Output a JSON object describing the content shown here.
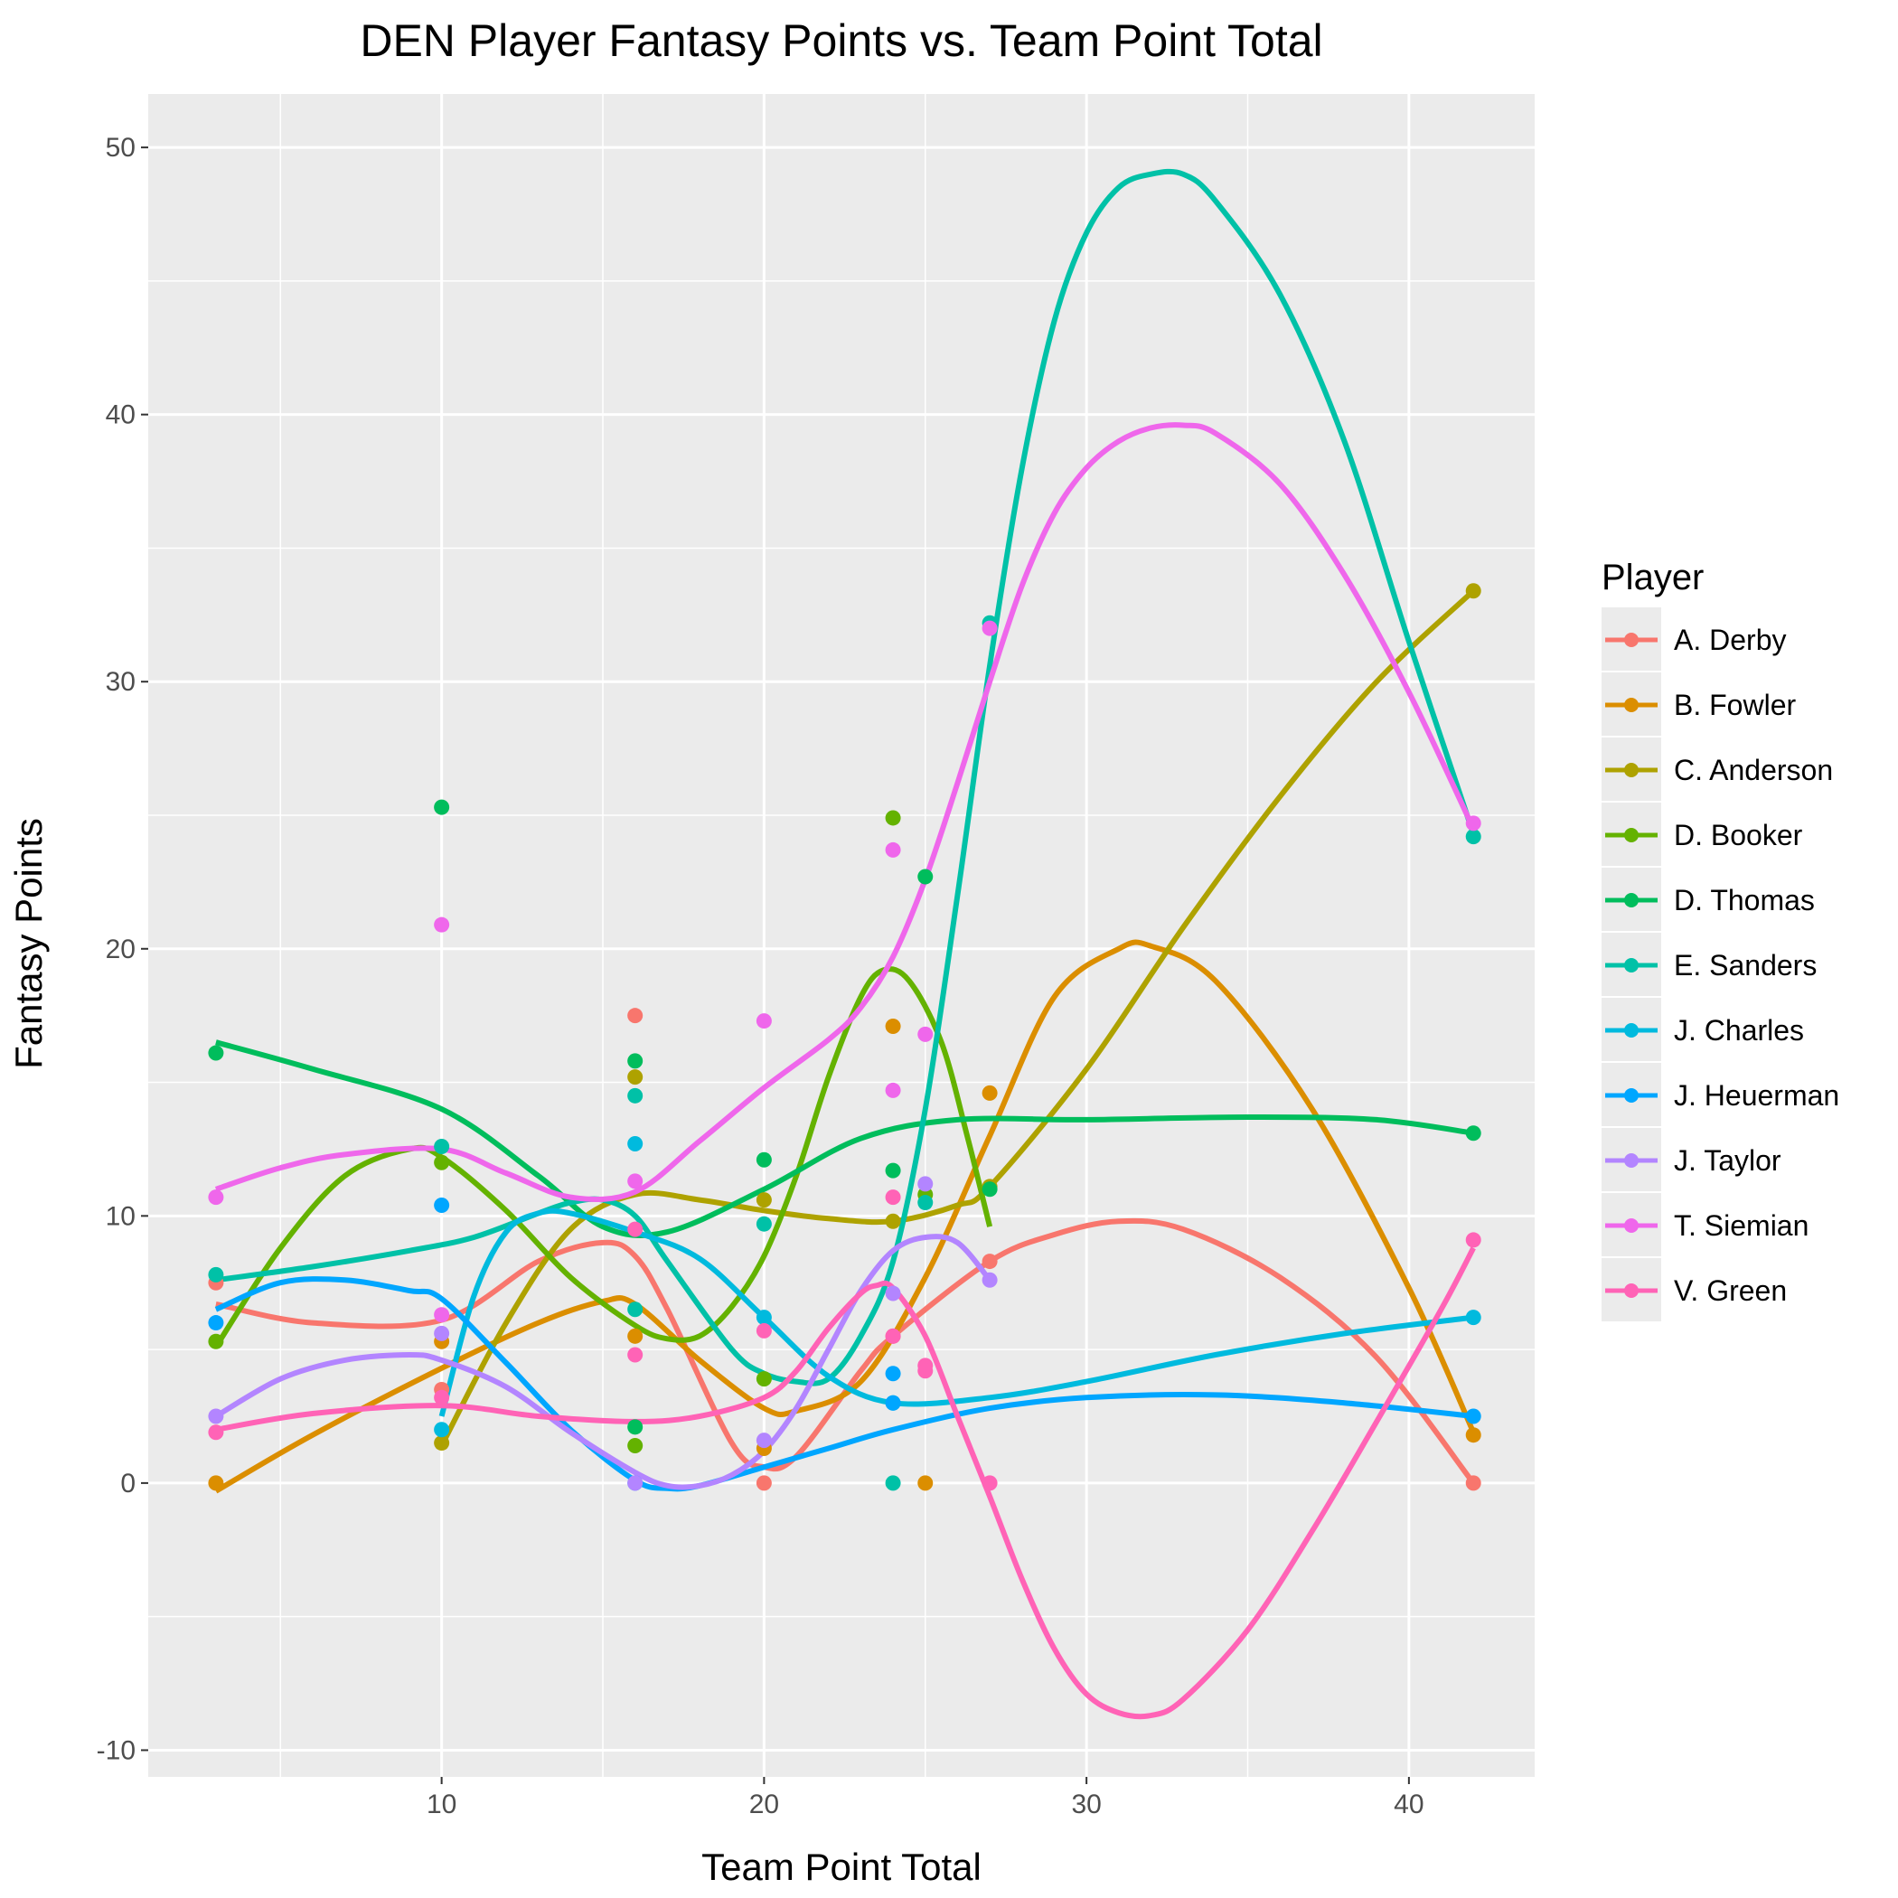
{
  "chart_data": {
    "type": "scatter",
    "title": "DEN Player Fantasy Points vs. Team Point Total",
    "xlabel": "Team Point Total",
    "ylabel": "Fantasy Points",
    "xlim": [
      0.9,
      43.9
    ],
    "ylim": [
      -11.0,
      52.0
    ],
    "x_ticks": [
      10,
      20,
      30,
      40
    ],
    "y_ticks": [
      -10,
      0,
      10,
      20,
      30,
      40,
      50
    ],
    "x_tick_labels": [
      "10",
      "20",
      "30",
      "40"
    ],
    "y_tick_labels": [
      "-10",
      "0",
      "10",
      "20",
      "30",
      "40",
      "50"
    ],
    "grid": true,
    "legend_title": "Player",
    "legend_position": "right",
    "series": [
      {
        "name": "A. Derby",
        "color": "#F8766D",
        "points": [
          [
            3,
            7.5
          ],
          [
            10,
            3.5
          ],
          [
            16,
            17.5
          ],
          [
            20,
            0
          ],
          [
            24,
            5.5
          ],
          [
            27,
            8.3
          ],
          [
            42,
            0
          ]
        ],
        "smooth": [
          [
            3,
            6.7
          ],
          [
            6,
            6.0
          ],
          [
            10,
            6.1
          ],
          [
            13,
            8.3
          ],
          [
            15,
            9.0
          ],
          [
            16,
            8.5
          ],
          [
            17,
            6.5
          ],
          [
            19,
            1.5
          ],
          [
            20,
            0.6
          ],
          [
            21,
            1.0
          ],
          [
            23,
            4.2
          ],
          [
            24,
            5.5
          ],
          [
            27,
            8.3
          ],
          [
            29,
            9.3
          ],
          [
            31,
            9.8
          ],
          [
            33,
            9.5
          ],
          [
            36,
            7.7
          ],
          [
            39,
            4.7
          ],
          [
            42,
            0
          ]
        ]
      },
      {
        "name": "B. Fowler",
        "color": "#DB8E00",
        "points": [
          [
            3,
            0
          ],
          [
            10,
            5.3
          ],
          [
            16,
            5.5
          ],
          [
            20,
            1.3
          ],
          [
            24,
            17.1
          ],
          [
            25,
            0
          ],
          [
            27,
            14.6
          ],
          [
            42,
            1.8
          ]
        ],
        "smooth": [
          [
            3,
            -0.3
          ],
          [
            6,
            1.8
          ],
          [
            10,
            4.3
          ],
          [
            13,
            6.0
          ],
          [
            15,
            6.8
          ],
          [
            16,
            6.7
          ],
          [
            18,
            4.6
          ],
          [
            20,
            2.8
          ],
          [
            21,
            2.7
          ],
          [
            23,
            3.8
          ],
          [
            25,
            7.7
          ],
          [
            27,
            13.0
          ],
          [
            29,
            18.2
          ],
          [
            31,
            20.0
          ],
          [
            32,
            20.1
          ],
          [
            34,
            18.8
          ],
          [
            37,
            14.0
          ],
          [
            40,
            7.3
          ],
          [
            42,
            1.9
          ]
        ]
      },
      {
        "name": "C. Anderson",
        "color": "#AEA200",
        "points": [
          [
            10,
            1.5
          ],
          [
            16,
            15.2
          ],
          [
            20,
            10.6
          ],
          [
            24,
            9.8
          ],
          [
            27,
            11.1
          ],
          [
            42,
            33.4
          ]
        ],
        "smooth": [
          [
            10,
            1.4
          ],
          [
            12,
            6.0
          ],
          [
            14,
            9.5
          ],
          [
            16,
            10.8
          ],
          [
            18,
            10.6
          ],
          [
            20,
            10.2
          ],
          [
            22,
            9.9
          ],
          [
            24,
            9.8
          ],
          [
            26,
            10.4
          ],
          [
            27,
            11.1
          ],
          [
            30,
            15.5
          ],
          [
            33,
            20.8
          ],
          [
            36,
            25.7
          ],
          [
            39,
            30.0
          ],
          [
            42,
            33.4
          ]
        ]
      },
      {
        "name": "D. Booker",
        "color": "#64B200",
        "points": [
          [
            3,
            5.3
          ],
          [
            10,
            12.0
          ],
          [
            16,
            1.4
          ],
          [
            20,
            3.9
          ],
          [
            24,
            24.9
          ],
          [
            25,
            10.8
          ]
        ],
        "smooth": [
          [
            3,
            5.1
          ],
          [
            5,
            8.8
          ],
          [
            7,
            11.5
          ],
          [
            9,
            12.5
          ],
          [
            10,
            12.2
          ],
          [
            12,
            10.2
          ],
          [
            14,
            7.7
          ],
          [
            16,
            5.9
          ],
          [
            17,
            5.4
          ],
          [
            18,
            5.5
          ],
          [
            19,
            6.6
          ],
          [
            20,
            8.5
          ],
          [
            21,
            11.5
          ],
          [
            22,
            15.2
          ],
          [
            23,
            18.2
          ],
          [
            23.7,
            19.2
          ],
          [
            24.5,
            18.8
          ],
          [
            25.5,
            16.5
          ],
          [
            26.3,
            13.0
          ],
          [
            27,
            9.6
          ]
        ]
      },
      {
        "name": "D. Thomas",
        "color": "#00BD5C",
        "points": [
          [
            3,
            16.1
          ],
          [
            10,
            25.3
          ],
          [
            16,
            15.8
          ],
          [
            16,
            2.1
          ],
          [
            20,
            12.1
          ],
          [
            24,
            11.7
          ],
          [
            25,
            22.7
          ],
          [
            27,
            11.0
          ],
          [
            42,
            13.1
          ]
        ],
        "smooth": [
          [
            3,
            16.5
          ],
          [
            6,
            15.5
          ],
          [
            10,
            14.0
          ],
          [
            13,
            11.5
          ],
          [
            15,
            9.6
          ],
          [
            17,
            9.4
          ],
          [
            20,
            11.0
          ],
          [
            23,
            12.9
          ],
          [
            26,
            13.6
          ],
          [
            30,
            13.6
          ],
          [
            35,
            13.7
          ],
          [
            39,
            13.6
          ],
          [
            42,
            13.1
          ]
        ]
      },
      {
        "name": "E. Sanders",
        "color": "#00C1A7",
        "points": [
          [
            3,
            7.8
          ],
          [
            10,
            12.6
          ],
          [
            16,
            14.5
          ],
          [
            16,
            6.5
          ],
          [
            20,
            9.7
          ],
          [
            24,
            0
          ],
          [
            25,
            10.5
          ],
          [
            27,
            32.2
          ],
          [
            42,
            24.2
          ]
        ],
        "smooth": [
          [
            3,
            7.6
          ],
          [
            6,
            8.1
          ],
          [
            9,
            8.7
          ],
          [
            11,
            9.2
          ],
          [
            13,
            10.1
          ],
          [
            14,
            10.5
          ],
          [
            15,
            10.6
          ],
          [
            16,
            10.0
          ],
          [
            17,
            8.3
          ],
          [
            19,
            5.0
          ],
          [
            20,
            4.1
          ],
          [
            21,
            3.8
          ],
          [
            22,
            3.9
          ],
          [
            23,
            5.5
          ],
          [
            24,
            8.3
          ],
          [
            25,
            14.0
          ],
          [
            26,
            22.0
          ],
          [
            27,
            30.6
          ],
          [
            28,
            38.0
          ],
          [
            29,
            43.5
          ],
          [
            30,
            46.8
          ],
          [
            31,
            48.5
          ],
          [
            32,
            49.0
          ],
          [
            33,
            49.0
          ],
          [
            34,
            48.0
          ],
          [
            36,
            44.5
          ],
          [
            38,
            39.0
          ],
          [
            40,
            31.5
          ],
          [
            42,
            24.3
          ]
        ]
      },
      {
        "name": "J. Charles",
        "color": "#00BADE",
        "points": [
          [
            10,
            2.0
          ],
          [
            16,
            12.7
          ],
          [
            20,
            6.2
          ],
          [
            24,
            3.0
          ],
          [
            42,
            6.2
          ]
        ],
        "smooth": [
          [
            10,
            2.5
          ],
          [
            11,
            7.0
          ],
          [
            12,
            9.4
          ],
          [
            13,
            10.1
          ],
          [
            14,
            10.1
          ],
          [
            16,
            9.4
          ],
          [
            18,
            8.4
          ],
          [
            20,
            6.2
          ],
          [
            22,
            4.0
          ],
          [
            24,
            3.0
          ],
          [
            27,
            3.2
          ],
          [
            30,
            3.8
          ],
          [
            34,
            4.8
          ],
          [
            38,
            5.6
          ],
          [
            42,
            6.2
          ]
        ]
      },
      {
        "name": "J. Heuerman",
        "color": "#00A6FF",
        "points": [
          [
            3,
            6.0
          ],
          [
            10,
            10.4
          ],
          [
            16,
            0
          ],
          [
            24,
            4.1
          ],
          [
            24,
            3.0
          ],
          [
            42,
            2.5
          ]
        ],
        "smooth": [
          [
            3,
            6.5
          ],
          [
            5,
            7.5
          ],
          [
            7,
            7.6
          ],
          [
            9,
            7.2
          ],
          [
            10,
            6.9
          ],
          [
            12,
            4.5
          ],
          [
            14,
            2.0
          ],
          [
            16,
            0.1
          ],
          [
            17,
            -0.2
          ],
          [
            18,
            -0.1
          ],
          [
            20,
            0.6
          ],
          [
            22,
            1.3
          ],
          [
            24,
            2.0
          ],
          [
            27,
            2.8
          ],
          [
            30,
            3.2
          ],
          [
            34,
            3.3
          ],
          [
            38,
            3.0
          ],
          [
            42,
            2.5
          ]
        ]
      },
      {
        "name": "J. Taylor",
        "color": "#B385FF",
        "points": [
          [
            3,
            2.5
          ],
          [
            10,
            5.6
          ],
          [
            16,
            0
          ],
          [
            20,
            1.6
          ],
          [
            24,
            7.1
          ],
          [
            25,
            11.2
          ],
          [
            27,
            7.6
          ]
        ],
        "smooth": [
          [
            3,
            2.5
          ],
          [
            5,
            3.9
          ],
          [
            7,
            4.6
          ],
          [
            9,
            4.8
          ],
          [
            10,
            4.6
          ],
          [
            12,
            3.6
          ],
          [
            14,
            1.9
          ],
          [
            16,
            0.4
          ],
          [
            17,
            -0.1
          ],
          [
            18,
            -0.1
          ],
          [
            19,
            0.3
          ],
          [
            20,
            1.2
          ],
          [
            21,
            2.8
          ],
          [
            22,
            5.0
          ],
          [
            23,
            7.2
          ],
          [
            24,
            8.7
          ],
          [
            25,
            9.2
          ],
          [
            26,
            9.0
          ],
          [
            27,
            7.6
          ]
        ]
      },
      {
        "name": "T. Siemian",
        "color": "#EF67EB",
        "points": [
          [
            3,
            10.7
          ],
          [
            10,
            20.9
          ],
          [
            10,
            6.3
          ],
          [
            16,
            11.3
          ],
          [
            20,
            17.3
          ],
          [
            24,
            23.7
          ],
          [
            24,
            14.7
          ],
          [
            25,
            16.8
          ],
          [
            27,
            32.0
          ],
          [
            42,
            24.7
          ]
        ],
        "smooth": [
          [
            3,
            11.0
          ],
          [
            5,
            11.8
          ],
          [
            7,
            12.3
          ],
          [
            10,
            12.5
          ],
          [
            12,
            11.6
          ],
          [
            14,
            10.7
          ],
          [
            16,
            10.9
          ],
          [
            18,
            12.8
          ],
          [
            20,
            14.8
          ],
          [
            22,
            16.6
          ],
          [
            23,
            17.8
          ],
          [
            24,
            19.7
          ],
          [
            25,
            22.6
          ],
          [
            26,
            26.2
          ],
          [
            27,
            30.0
          ],
          [
            28,
            33.6
          ],
          [
            29,
            36.3
          ],
          [
            30,
            38.0
          ],
          [
            31,
            39.0
          ],
          [
            32,
            39.5
          ],
          [
            33,
            39.6
          ],
          [
            34,
            39.3
          ],
          [
            36,
            37.4
          ],
          [
            38,
            34.0
          ],
          [
            40,
            29.6
          ],
          [
            42,
            24.5
          ]
        ]
      },
      {
        "name": "V. Green",
        "color": "#FF63B6",
        "points": [
          [
            3,
            1.9
          ],
          [
            10,
            3.2
          ],
          [
            16,
            9.5
          ],
          [
            16,
            4.8
          ],
          [
            20,
            5.7
          ],
          [
            24,
            10.7
          ],
          [
            24,
            5.5
          ],
          [
            25,
            4.4
          ],
          [
            25,
            4.2
          ],
          [
            27,
            0
          ],
          [
            42,
            9.1
          ]
        ],
        "smooth": [
          [
            3,
            2.0
          ],
          [
            6,
            2.6
          ],
          [
            10,
            2.9
          ],
          [
            13,
            2.5
          ],
          [
            16,
            2.3
          ],
          [
            18,
            2.5
          ],
          [
            20,
            3.2
          ],
          [
            21,
            4.2
          ],
          [
            22,
            5.8
          ],
          [
            23,
            7.1
          ],
          [
            23.5,
            7.4
          ],
          [
            24,
            7.3
          ],
          [
            25,
            5.5
          ],
          [
            26,
            2.5
          ],
          [
            27,
            -0.5
          ],
          [
            28,
            -3.6
          ],
          [
            29,
            -6.2
          ],
          [
            30,
            -7.9
          ],
          [
            31,
            -8.6
          ],
          [
            32,
            -8.7
          ],
          [
            33,
            -8.1
          ],
          [
            35,
            -5.5
          ],
          [
            37,
            -1.8
          ],
          [
            39,
            2.3
          ],
          [
            41,
            6.5
          ],
          [
            42,
            8.8
          ]
        ]
      }
    ]
  }
}
